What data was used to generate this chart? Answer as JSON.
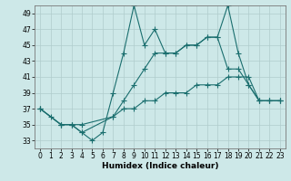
{
  "xlabel": "Humidex (Indice chaleur)",
  "ylabel": "",
  "background_color": "#cde8e8",
  "grid_color": "#b8d8d8",
  "line_color": "#1a6e6e",
  "xlim": [
    -0.5,
    23.5
  ],
  "ylim": [
    32,
    50
  ],
  "yticks": [
    33,
    35,
    37,
    39,
    41,
    43,
    45,
    47,
    49
  ],
  "xticks": [
    0,
    1,
    2,
    3,
    4,
    5,
    6,
    7,
    8,
    9,
    10,
    11,
    12,
    13,
    14,
    15,
    16,
    17,
    18,
    19,
    20,
    21,
    22,
    23
  ],
  "line1_x": [
    0,
    1,
    2,
    3,
    4,
    5,
    6,
    7,
    8,
    9,
    10,
    11,
    12,
    13,
    14,
    15,
    16,
    17,
    18,
    19,
    20,
    21,
    22,
    23
  ],
  "line1_y": [
    37,
    36,
    35,
    35,
    34,
    33,
    34,
    39,
    44,
    50,
    45,
    47,
    44,
    44,
    45,
    45,
    46,
    46,
    50,
    44,
    40,
    38,
    38,
    38
  ],
  "line2_x": [
    0,
    2,
    3,
    4,
    7,
    8,
    9,
    10,
    11,
    12,
    13,
    14,
    15,
    16,
    17,
    18,
    19,
    20,
    21,
    22,
    23
  ],
  "line2_y": [
    37,
    35,
    35,
    34,
    36,
    38,
    40,
    42,
    44,
    44,
    44,
    45,
    45,
    46,
    46,
    42,
    42,
    40,
    38,
    38,
    38
  ],
  "line3_x": [
    0,
    2,
    3,
    4,
    7,
    8,
    9,
    10,
    11,
    12,
    13,
    14,
    15,
    16,
    17,
    18,
    19,
    20,
    21,
    22,
    23
  ],
  "line3_y": [
    37,
    35,
    35,
    35,
    36,
    37,
    37,
    38,
    38,
    39,
    39,
    39,
    40,
    40,
    40,
    41,
    41,
    41,
    38,
    38,
    38
  ]
}
